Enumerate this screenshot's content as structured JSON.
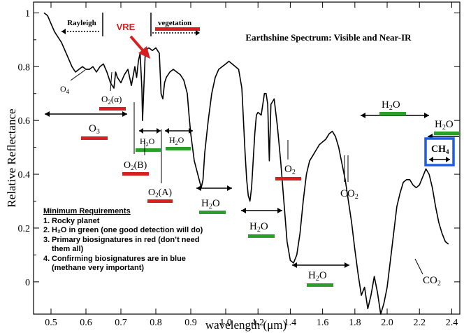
{
  "chart_data": {
    "type": "line",
    "title": "Earthshine Spectrum: Visible and Near-IR",
    "xlabel": "wavelength (μm)",
    "ylabel": "Relative Reflectance",
    "xlim": [
      0.45,
      2.45
    ],
    "ylim": [
      -0.12,
      1.04
    ],
    "x_ticks": [
      "0.5",
      "0.6",
      "0.7",
      "0.8",
      "0.9",
      "1.0",
      "1.2",
      "1.4",
      "1.6",
      "1.8",
      "2.0",
      "2.2",
      "2.4"
    ],
    "y_ticks": [
      "0",
      "0.2",
      "0.4",
      "0.6",
      "0.8",
      "1"
    ],
    "x_tick_values": [
      0.5,
      0.6,
      0.7,
      0.8,
      0.9,
      1.0,
      1.2,
      1.4,
      1.6,
      1.8,
      2.0,
      2.2,
      2.4
    ],
    "y_tick_values": [
      0,
      0.2,
      0.4,
      0.6,
      0.8,
      1.0
    ],
    "grid": false,
    "legend": "none",
    "series": [
      {
        "x": [
          0.48,
          0.49,
          0.5,
          0.51,
          0.52,
          0.53,
          0.54,
          0.55,
          0.56,
          0.57,
          0.58,
          0.59,
          0.6,
          0.61,
          0.62,
          0.63,
          0.64,
          0.65,
          0.66,
          0.67,
          0.68,
          0.685,
          0.69,
          0.7,
          0.71,
          0.72,
          0.73,
          0.74,
          0.745,
          0.75,
          0.755,
          0.76,
          0.762,
          0.765,
          0.77,
          0.78,
          0.79,
          0.8,
          0.81,
          0.815,
          0.82,
          0.825,
          0.83,
          0.84,
          0.85,
          0.86,
          0.87,
          0.88,
          0.89,
          0.895,
          0.9,
          0.91,
          0.92,
          0.93,
          0.935,
          0.94,
          0.95,
          0.96,
          0.97,
          0.98,
          0.99,
          1.0,
          1.02,
          1.04,
          1.06,
          1.08,
          1.1,
          1.11,
          1.12,
          1.13,
          1.14,
          1.15,
          1.16,
          1.17,
          1.18,
          1.19,
          1.2,
          1.22,
          1.24,
          1.25,
          1.26,
          1.27,
          1.28,
          1.3,
          1.32,
          1.34,
          1.36,
          1.38,
          1.4,
          1.42,
          1.44,
          1.46,
          1.48,
          1.5,
          1.52,
          1.54,
          1.56,
          1.58,
          1.6,
          1.62,
          1.64,
          1.66,
          1.68,
          1.7,
          1.72,
          1.74,
          1.76,
          1.78,
          1.8,
          1.82,
          1.84,
          1.86,
          1.88,
          1.9,
          1.92,
          1.94,
          1.96,
          1.98,
          2.0,
          2.02,
          2.04,
          2.06,
          2.08,
          2.1,
          2.12,
          2.14,
          2.16,
          2.18,
          2.2,
          2.22,
          2.24,
          2.26,
          2.28,
          2.3,
          2.32,
          2.34,
          2.36,
          2.38
        ],
        "values": [
          1.0,
          0.99,
          0.96,
          0.93,
          0.91,
          0.89,
          0.86,
          0.83,
          0.8,
          0.78,
          0.79,
          0.8,
          0.79,
          0.79,
          0.8,
          0.78,
          0.8,
          0.81,
          0.78,
          0.74,
          0.72,
          0.78,
          0.76,
          0.74,
          0.77,
          0.79,
          0.73,
          0.8,
          0.76,
          0.82,
          0.85,
          0.72,
          0.6,
          0.7,
          0.86,
          0.87,
          0.86,
          0.87,
          0.85,
          0.7,
          0.68,
          0.74,
          0.76,
          0.78,
          0.79,
          0.78,
          0.77,
          0.75,
          0.7,
          0.62,
          0.55,
          0.45,
          0.4,
          0.35,
          0.38,
          0.48,
          0.6,
          0.7,
          0.76,
          0.79,
          0.8,
          0.81,
          0.82,
          0.81,
          0.8,
          0.79,
          0.72,
          0.6,
          0.48,
          0.38,
          0.32,
          0.3,
          0.35,
          0.45,
          0.55,
          0.62,
          0.63,
          0.62,
          0.7,
          0.7,
          0.66,
          0.45,
          0.66,
          0.68,
          0.58,
          0.45,
          0.3,
          0.15,
          0.08,
          0.07,
          0.1,
          0.18,
          0.3,
          0.4,
          0.45,
          0.47,
          0.49,
          0.51,
          0.52,
          0.53,
          0.55,
          0.56,
          0.54,
          0.5,
          0.44,
          0.38,
          0.3,
          0.22,
          0.12,
          0.03,
          -0.05,
          -0.02,
          -0.1,
          -0.05,
          0.02,
          -0.04,
          -0.12,
          -0.08,
          -0.02,
          0.08,
          0.18,
          0.28,
          0.33,
          0.37,
          0.38,
          0.38,
          0.36,
          0.35,
          0.36,
          0.39,
          0.42,
          0.4,
          0.35,
          0.28,
          0.22,
          0.18,
          0.15,
          0.14
        ]
      }
    ],
    "annotations": {
      "rayleigh": "Rayleigh",
      "vre": "VRE",
      "vegetation": "vegetation",
      "o4": "O",
      "o4_sub": "4",
      "o2_alpha": "O",
      "o2_alpha_sub": "2",
      "o2_alpha_suffix": "(α)",
      "o3": "O",
      "o3_sub": "3",
      "h2o_a": "H",
      "h2o_a_sub": "2",
      "h2o_a_suffix": "O",
      "h2o_b": "H",
      "h2o_b_sub": "2",
      "h2o_b_suffix": "O",
      "o2_b": "O",
      "o2_b_sub": "2",
      "o2_b_suffix": "(B)",
      "o2_a": "O",
      "o2_a_sub": "2",
      "o2_a_suffix": "(A)",
      "h2o_c": "H",
      "h2o_c_sub": "2",
      "h2o_c_suffix": "O",
      "h2o_d": "H",
      "h2o_d_sub": "2",
      "h2o_d_suffix": "O",
      "o2_ir": "O",
      "o2_ir_sub": "2",
      "co2_a": "CO",
      "co2_a_sub": "2",
      "h2o_e": "H",
      "h2o_e_sub": "2",
      "h2o_e_suffix": "O",
      "h2o_f": "H",
      "h2o_f_sub": "2",
      "h2o_f_suffix": "O",
      "h2o_g": "H",
      "h2o_g_sub": "2",
      "h2o_g_suffix": "O",
      "ch4": "CH",
      "ch4_sub": "4",
      "co2_b": "CO",
      "co2_b_sub": "2"
    },
    "colors": {
      "line": "#000000",
      "biosignature_red": "#d62020",
      "water_green": "#2aa02a",
      "confirming_blue": "#1f5ce0",
      "vre_arrow": "#d62020"
    }
  },
  "requirements": {
    "heading": "Minimum Requirements",
    "items": [
      {
        "num": "1.",
        "text": "Rocky planet"
      },
      {
        "num": "2.",
        "text": "H₂O in green (one good detection will do)"
      },
      {
        "num": "3.",
        "text": "Primary biosignatures in red (don’t need them all)"
      },
      {
        "num": "4.",
        "text": "Confirming biosignatures are in blue (methane very important)"
      }
    ]
  }
}
